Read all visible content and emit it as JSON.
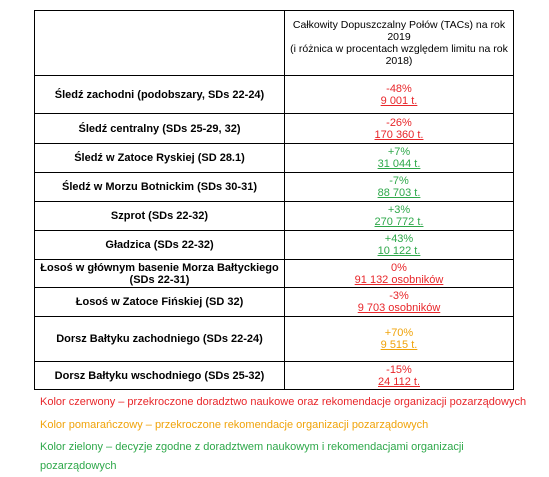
{
  "table": {
    "header": {
      "left": "",
      "right_line1": "Całkowity Dopuszczalny Połów (TACs) na rok 2019",
      "right_line2": "(i różnica w procentach względem limitu na rok 2018)"
    },
    "rows": [
      {
        "name": "Śledź zachodni (podobszary, SDs 22-24)",
        "change": "-48%",
        "amount": "9 001 t.",
        "color": "#e8262a"
      },
      {
        "name": "Śledź centralny (SDs 25-29, 32)",
        "change": "-26%",
        "amount": "170 360 t.",
        "color": "#e8262a"
      },
      {
        "name": "Śledź w Zatoce Ryskiej (SD 28.1)",
        "change": "+7%",
        "amount": "31 044 t.",
        "color": "#2ea84a"
      },
      {
        "name": "Śledź w Morzu Botnickim (SDs 30-31)",
        "change": "-7%",
        "amount": "88 703 t.",
        "color": "#2ea84a"
      },
      {
        "name": "Szprot (SDs 22-32)",
        "change": "+3%",
        "amount": "270 772 t.",
        "color": "#2ea84a"
      },
      {
        "name": "Gładzica (SDs 22-32)",
        "change": "+43%",
        "amount": "10 122 t.",
        "color": "#2ea84a"
      },
      {
        "name": "Łosoś w głównym basenie Morza Bałtyckiego (SDs 22-31)",
        "change": "0%",
        "amount": "91 132 osobników",
        "color": "#e8262a"
      },
      {
        "name": "Łosoś w Zatoce Fińskiej (SD 32)",
        "change": "-3%",
        "amount": "9 703 osobników",
        "color": "#e8262a"
      },
      {
        "name": "Dorsz Bałtyku zachodniego (SDs 22-24)",
        "change": "+70%",
        "amount": "9 515 t.",
        "color": "#f0a30a"
      },
      {
        "name": "Dorsz Bałtyku wschodniego (SDs 25-32)",
        "change": "-15%",
        "amount": "24 112 t.",
        "color": "#e8262a"
      }
    ]
  },
  "legend": {
    "red": "Kolor czerwony – przekroczone doradztwo naukowe oraz rekomendacje organizacji pozarządowych",
    "orange": "Kolor pomarańczowy – przekroczone rekomendacje organizacji pozarządowych",
    "green": "Kolor zielony – decyzje zgodne z doradztwem naukowym i rekomendacjami organizacji pozarządowych",
    "colors": {
      "red": "#e8262a",
      "orange": "#f0a30a",
      "green": "#2ea84a"
    }
  }
}
